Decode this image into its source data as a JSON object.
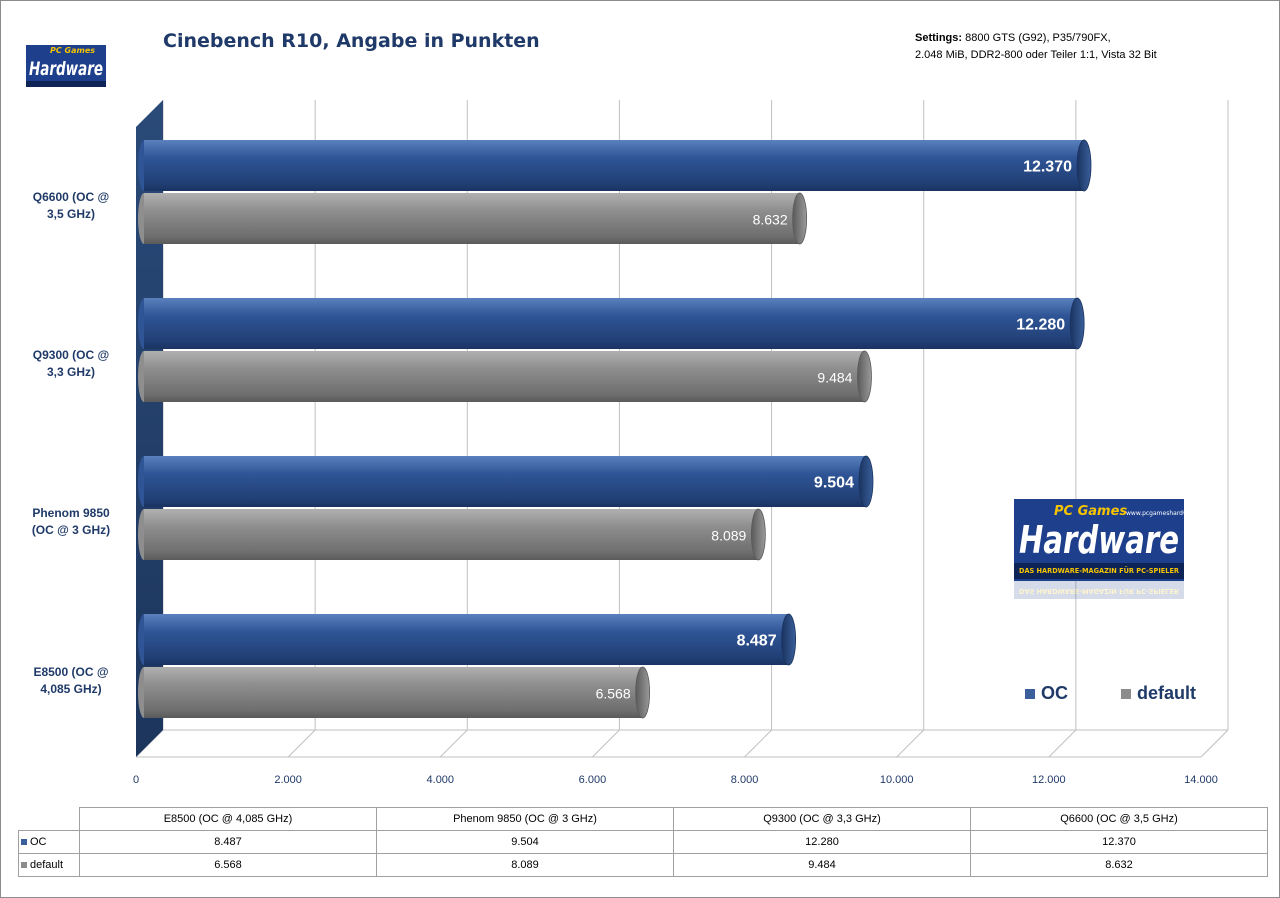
{
  "chart_data": {
    "type": "bar",
    "title": "Cinebench R10, Angabe in Punkten",
    "settings_label": "Settings:",
    "settings_line1": "8800 GTS (G92), P35/790FX,",
    "settings_line2": "2.048 MiB, DDR2-800 oder Teiler 1:1, Vista 32 Bit",
    "categories": [
      "E8500 (OC @ 4,085 GHz)",
      "Phenom 9850 (OC @ 3 GHz)",
      "Q9300 (OC @ 3,3 GHz)",
      "Q6600 (OC @ 3,5 GHz)"
    ],
    "axis_category_labels": {
      "q6600": [
        "Q6600  (OC @",
        "3,5 GHz)"
      ],
      "q9300": [
        "Q9300  (OC @",
        "3,3 GHz)"
      ],
      "phenom": [
        "Phenom 9850",
        "(OC @ 3 GHz)"
      ],
      "e8500": [
        "E8500  (OC @",
        "4,085  GHz)"
      ]
    },
    "series": [
      {
        "name": "OC",
        "values": [
          8487,
          9504,
          12280,
          12370
        ],
        "labels": [
          "8.487",
          "9.504",
          "12.280",
          "12.370"
        ],
        "color": "#3a5f9a"
      },
      {
        "name": "default",
        "values": [
          6568,
          8089,
          9484,
          8632
        ],
        "labels": [
          "6.568",
          "8.089",
          "9.484",
          "8.632"
        ],
        "color": "#8c8c8c"
      }
    ],
    "xlim": [
      0,
      14000
    ],
    "xticks": [
      "0",
      "2.000",
      "4.000",
      "6.000",
      "8.000",
      "10.000",
      "12.000",
      "14.000"
    ],
    "grid": true,
    "legend_position": "bottom-right",
    "data_table": true
  },
  "logos": {
    "small": {
      "text": "Hardware",
      "top": "PC Games"
    },
    "big": {
      "text": "Hardware",
      "top": "PC Games",
      "url": "www.pcgameshardware.de",
      "tagline": "DAS HARDWARE-MAGAZIN FÜR PC-SPIELER"
    }
  }
}
